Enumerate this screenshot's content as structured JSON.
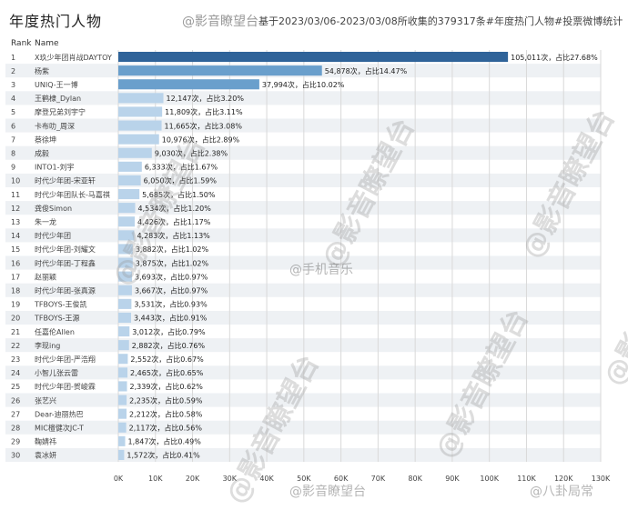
{
  "header": {
    "title": "年度热门人物",
    "watermark": "@影音瞭望台",
    "source_note": "基于2023/03/06-2023/03/08所收集的379317条#年度热门人物#投票微博统计"
  },
  "watermarks": {
    "diagonal": "@影音瞭望台",
    "center": "@手机音乐",
    "bottom_left": "@影音瞭望台",
    "bottom_right": "@八卦局常"
  },
  "chart_data": {
    "type": "bar",
    "orientation": "horizontal",
    "column_headers": [
      "Rank",
      "Name"
    ],
    "ranks": [
      1,
      2,
      3,
      4,
      5,
      6,
      7,
      8,
      9,
      10,
      11,
      12,
      13,
      14,
      15,
      16,
      17,
      18,
      19,
      20,
      21,
      22,
      23,
      24,
      25,
      26,
      27,
      28,
      29,
      30
    ],
    "categories": [
      "X玖少年团肖战DAYTOY",
      "杨紫",
      "UNIQ-王一博",
      "王鹤棣_Dylan",
      "摩登兄弟刘宇宁",
      "卡布叻_周深",
      "蔡徐坤",
      "成毅",
      "INTO1-刘宇",
      "时代少年团-宋亚轩",
      "时代少年团队长-马嘉祺",
      "龚俊Simon",
      "朱一龙",
      "时代少年团",
      "时代少年团-刘耀文",
      "时代少年团-丁程鑫",
      "赵丽颖",
      "时代少年团-张真源",
      "TFBOYS-王俊凯",
      "TFBOYS-王源",
      "任嘉伦Allen",
      "李现ing",
      "时代少年团-严浩翔",
      "小智儿张云雷",
      "时代少年团-贺峻霖",
      "张艺兴",
      "Dear-迪丽热巴",
      "MIC檀健次JC-T",
      "鞠婧祎",
      "袁冰妍"
    ],
    "values": [
      105011,
      54878,
      37994,
      12147,
      11809,
      11665,
      10976,
      9030,
      6333,
      6050,
      5685,
      4534,
      4426,
      4283,
      3882,
      3875,
      3693,
      3667,
      3531,
      3443,
      3012,
      2882,
      2552,
      2465,
      2339,
      2235,
      2212,
      2117,
      1847,
      1572
    ],
    "labels": [
      "105,011次，占比27.68%",
      "54,878次，占比14.47%",
      "37,994次，占比10.02%",
      "12,147次，占比3.20%",
      "11,809次，占比3.11%",
      "11,665次，占比3.08%",
      "10,976次，占比2.89%",
      "9,030次，占比2.38%",
      "6,333次，占比1.67%",
      "6,050次，占比1.59%",
      "5,685次，占比1.50%",
      "4,534次，占比1.20%",
      "4,426次，占比1.17%",
      "4,283次，占比1.13%",
      "3,882次，占比1.02%",
      "3,875次，占比1.02%",
      "3,693次，占比0.97%",
      "3,667次，占比0.97%",
      "3,531次，占比0.93%",
      "3,443次，占比0.91%",
      "3,012次，占比0.79%",
      "2,882次，占比0.76%",
      "2,552次，占比0.67%",
      "2,465次，占比0.65%",
      "2,339次，占比0.62%",
      "2,235次，占比0.59%",
      "2,212次，占比0.58%",
      "2,117次，占比0.56%",
      "1,847次，占比0.49%",
      "1,572次，占比0.41%"
    ],
    "xlim": [
      0,
      130000
    ],
    "x_ticks": [
      0,
      10000,
      20000,
      30000,
      40000,
      50000,
      60000,
      70000,
      80000,
      90000,
      100000,
      110000,
      120000,
      130000
    ],
    "x_tick_labels": [
      "0K",
      "10K",
      "20K",
      "30K",
      "40K",
      "50K",
      "60K",
      "70K",
      "80K",
      "90K",
      "100K",
      "110K",
      "120K",
      "130K"
    ],
    "colors": {
      "bar_dark": "#2f6399",
      "bar_mid": "#6a9fcc",
      "bar_light": "#b9d3ea",
      "row_alt": "#eef1f4",
      "grid": "#d9d9d9"
    },
    "grid": true
  }
}
